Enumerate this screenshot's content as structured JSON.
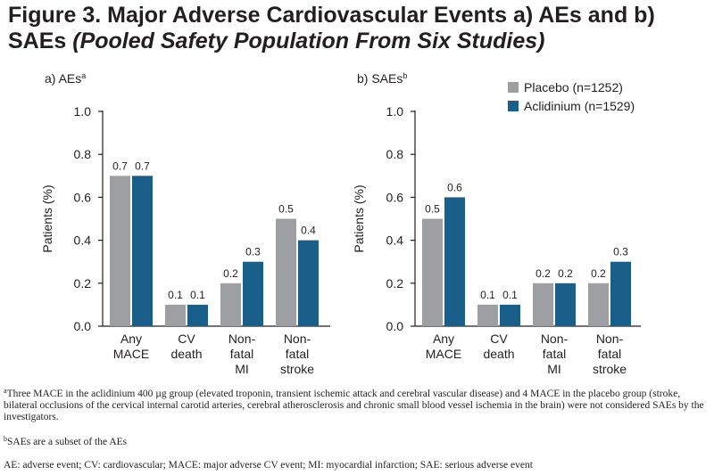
{
  "figure": {
    "title_bold": "Figure 3. Major Adverse Cardiovascular Events a) AEs and b) SAEs",
    "title_italic": "(Pooled Safety Population From Six Studies)"
  },
  "legend": {
    "placebo": "Placebo (n=1252)",
    "aclidinium": "Aclidinium (n=1529)"
  },
  "colors": {
    "placebo": "#9d9fa2",
    "aclidinium": "#1a5f8a",
    "axis": "#231f20"
  },
  "chart_data": [
    {
      "type": "bar",
      "title": "a) AEs",
      "title_sup": "a",
      "ylabel": "Patients (%)",
      "ylim": [
        0,
        1.0
      ],
      "yticks": [
        "0.0",
        "0.2",
        "0.4",
        "0.6",
        "0.8",
        "1.0"
      ],
      "categories": [
        [
          "Any",
          "MACE"
        ],
        [
          "CV",
          "death"
        ],
        [
          "Non-",
          "fatal",
          "MI"
        ],
        [
          "Non-",
          "fatal",
          "stroke"
        ]
      ],
      "series": [
        {
          "name": "Placebo (n=1252)",
          "values": [
            0.7,
            0.1,
            0.2,
            0.5
          ],
          "labels": [
            "0.7",
            "0.1",
            "0.2",
            "0.5"
          ]
        },
        {
          "name": "Aclidinium (n=1529)",
          "values": [
            0.7,
            0.1,
            0.3,
            0.4
          ],
          "labels": [
            "0.7",
            "0.1",
            "0.3",
            "0.4"
          ]
        }
      ]
    },
    {
      "type": "bar",
      "title": "b) SAEs",
      "title_sup": "b",
      "ylabel": "Patients (%)",
      "ylim": [
        0,
        1.0
      ],
      "yticks": [
        "0.0",
        "0.2",
        "0.4",
        "0.6",
        "0.8",
        "1.0"
      ],
      "categories": [
        [
          "Any",
          "MACE"
        ],
        [
          "CV",
          "death"
        ],
        [
          "Non-",
          "fatal",
          "MI"
        ],
        [
          "Non-",
          "fatal",
          "stroke"
        ]
      ],
      "legend": "top-right",
      "series": [
        {
          "name": "Placebo (n=1252)",
          "values": [
            0.5,
            0.1,
            0.2,
            0.2
          ],
          "labels": [
            "0.5",
            "0.1",
            "0.2",
            "0.2"
          ]
        },
        {
          "name": "Aclidinium (n=1529)",
          "values": [
            0.6,
            0.1,
            0.2,
            0.3
          ],
          "labels": [
            "0.6",
            "0.1",
            "0.2",
            "0.3"
          ]
        }
      ]
    }
  ],
  "footnotes": {
    "a_mark": "a",
    "a_text": "Three MACE in the aclidinium 400 µg group (elevated troponin, transient ischemic attack and cerebral vascular disease) and 4 MACE in the placebo group (stroke, bilateral occlusions of the cervical internal carotid arteries, cerebral atherosclerosis and chronic small blood vessel ischemia in the brain) were not considered SAEs by the investigators.",
    "b_mark": "b",
    "b_text": "SAEs are a subset of the AEs",
    "abbrev": "AE: adverse event; CV: cardiovascular; MACE: major adverse CV event; MI: myocardial infarction; SAE: serious adverse event"
  }
}
